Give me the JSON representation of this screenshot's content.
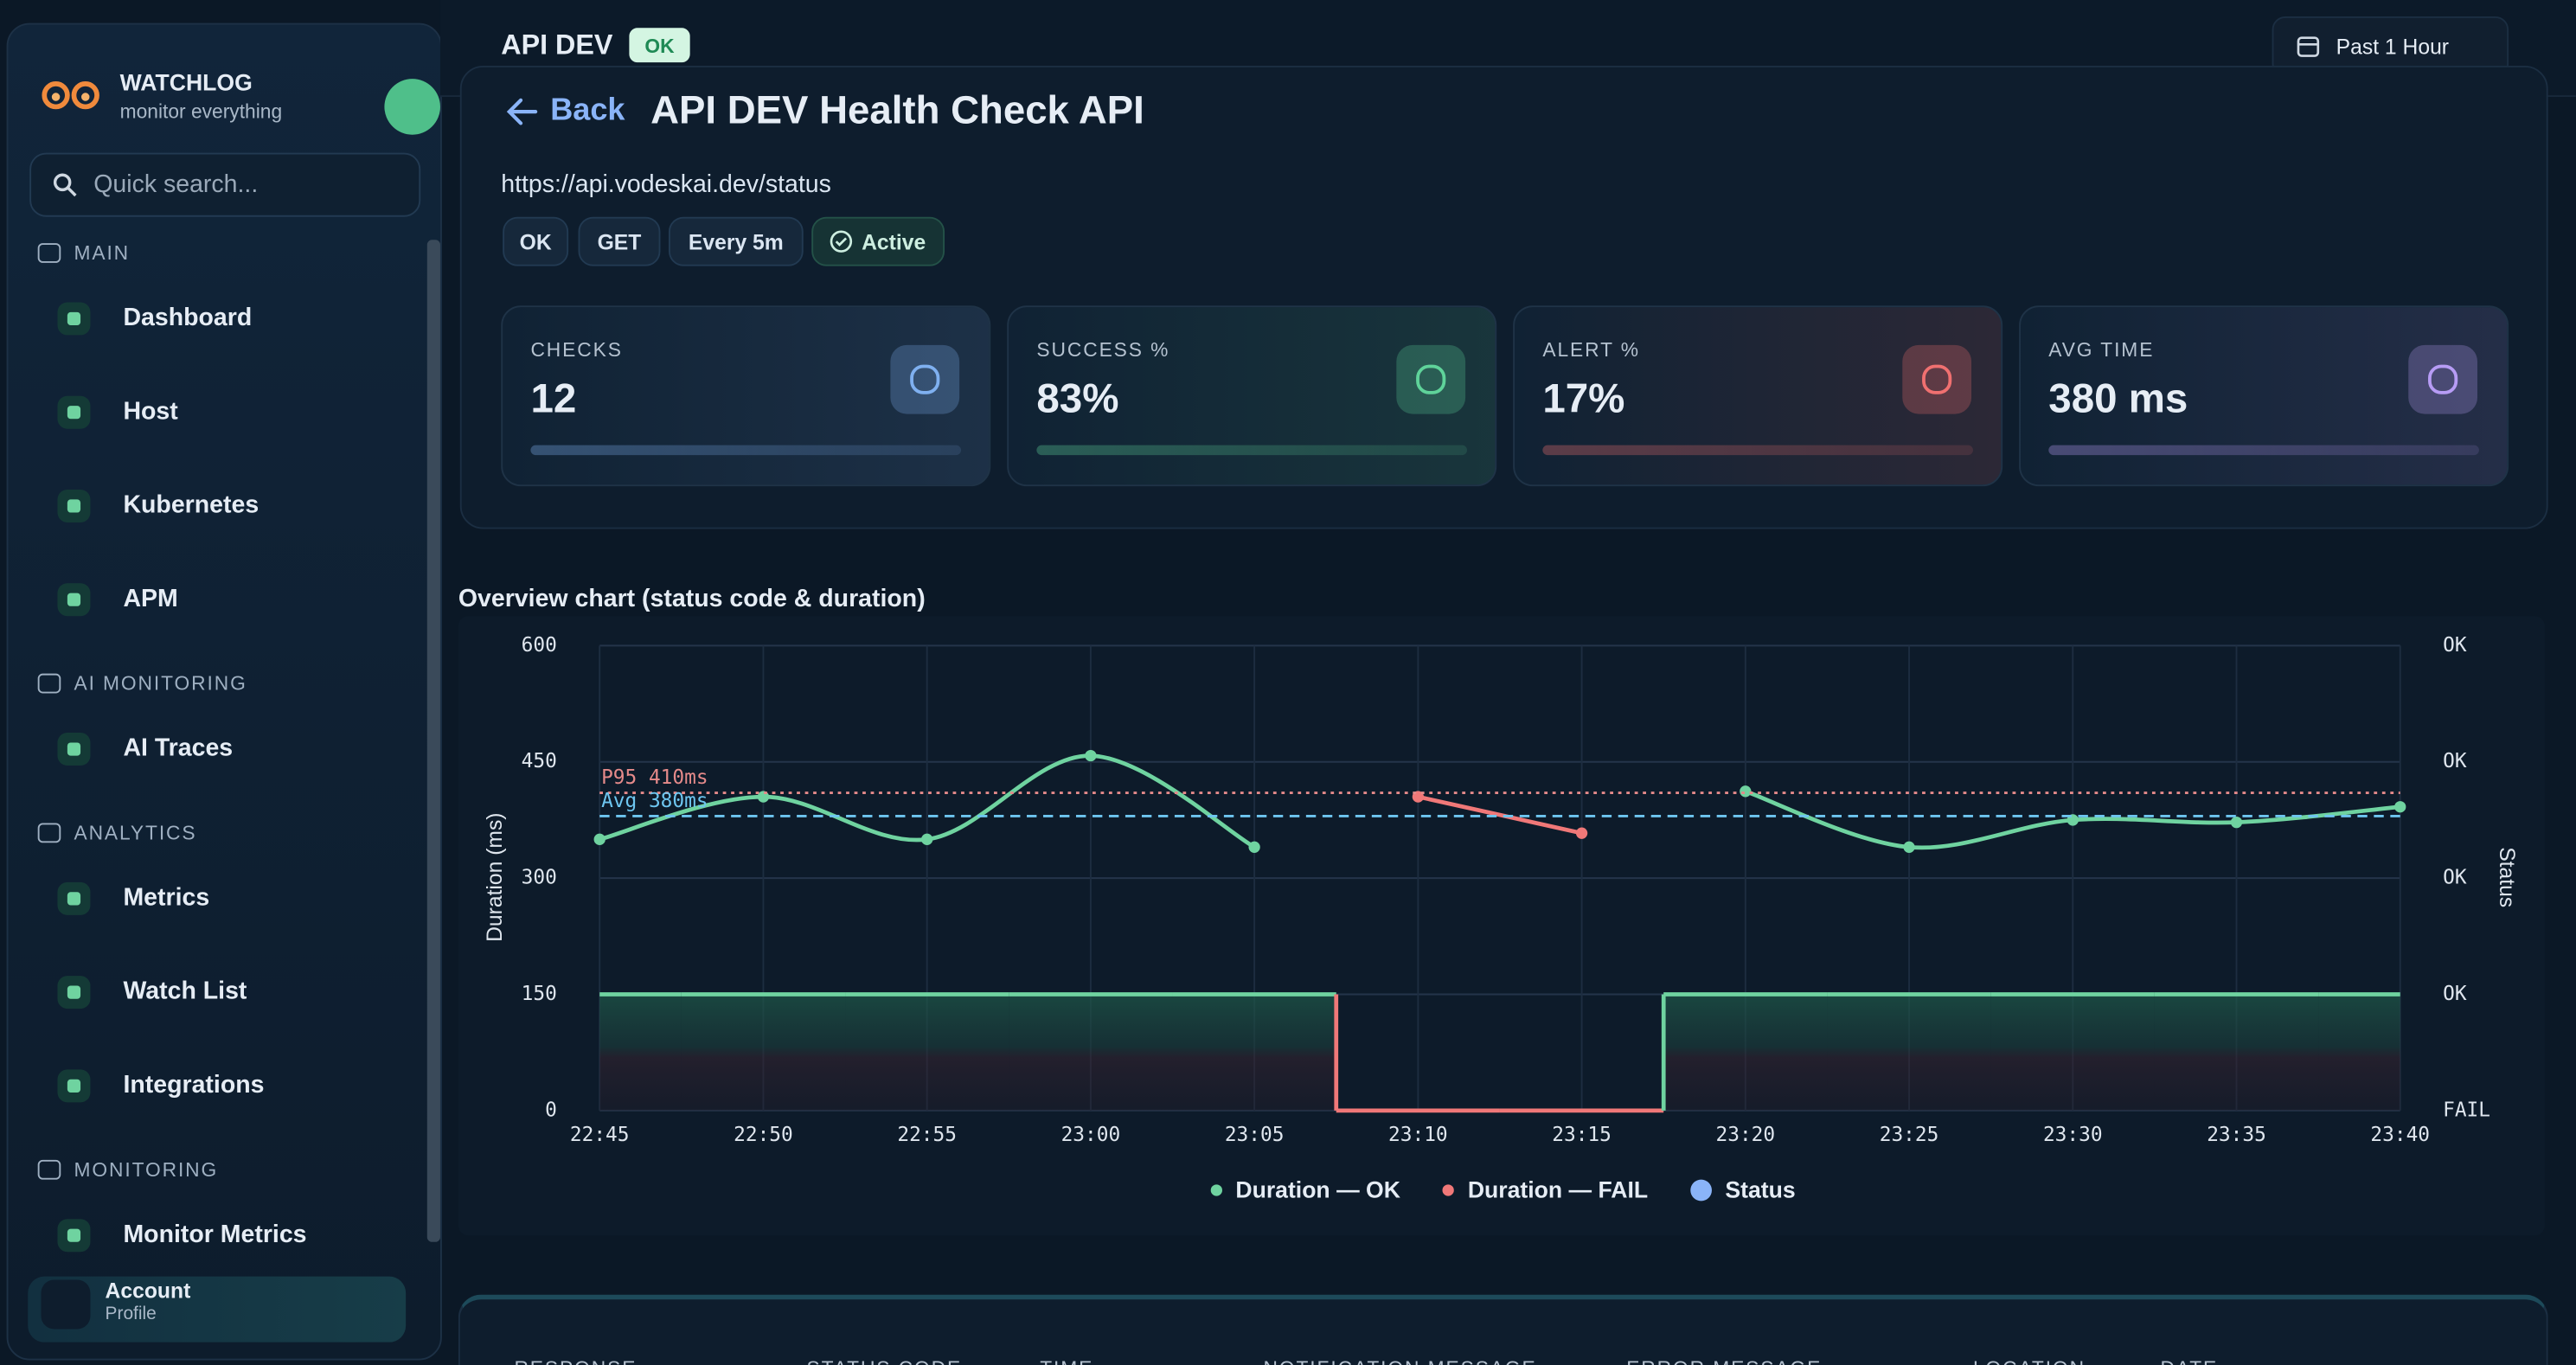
{
  "brand": {
    "name": "WATCHLOG",
    "tagline": "monitor everything"
  },
  "search": {
    "placeholder": "Quick search..."
  },
  "sidebar": [
    {
      "title": "MAIN",
      "items": [
        "Dashboard",
        "Host",
        "Kubernetes",
        "APM"
      ]
    },
    {
      "title": "AI MONITORING",
      "items": [
        "AI Traces"
      ]
    },
    {
      "title": "ANALYTICS",
      "items": [
        "Metrics",
        "Watch List",
        "Integrations"
      ]
    },
    {
      "title": "MONITORING",
      "items": [
        "Monitor Metrics"
      ]
    }
  ],
  "account": {
    "name": "Account",
    "sub": "Profile"
  },
  "header": {
    "title": "API DEV",
    "badge": "OK",
    "range": "Past 1 Hour"
  },
  "detail": {
    "back": "Back",
    "title": "API DEV Health Check API",
    "url": "https://api.vodeskai.dev/status",
    "chips": [
      "OK",
      "GET",
      "Every 5m",
      "Active"
    ]
  },
  "stats": [
    {
      "label": "CHECKS",
      "value": "12",
      "color": "#7fb0f0"
    },
    {
      "label": "SUCCESS %",
      "value": "83%",
      "color": "#5fd39a"
    },
    {
      "label": "ALERT %",
      "value": "17%",
      "color": "#f07070"
    },
    {
      "label": "AVG TIME",
      "value": "380 ms",
      "color": "#b79cf5"
    }
  ],
  "chart_data": {
    "type": "line",
    "title": "Overview chart (status code & duration)",
    "y_label": "Duration (ms)",
    "y2_label": "Status",
    "categories": [
      "22:45",
      "22:50",
      "22:55",
      "23:00",
      "23:05",
      "23:10",
      "23:15",
      "23:20",
      "23:25",
      "23:30",
      "23:35",
      "23:40"
    ],
    "series": [
      {
        "name": "Duration — OK",
        "color": "#6fd3a0",
        "values": [
          350,
          405,
          350,
          458,
          340,
          null,
          null,
          412,
          340,
          375,
          372,
          392
        ]
      },
      {
        "name": "Duration — FAIL",
        "color": "#f07878",
        "values": [
          null,
          null,
          null,
          null,
          null,
          405,
          358,
          null,
          null,
          null,
          null,
          null
        ]
      },
      {
        "name": "Status",
        "color": "#8ab4f8",
        "axis": "y2",
        "step": true,
        "values": [
          1,
          1,
          1,
          1,
          1,
          0,
          0,
          1,
          1,
          1,
          1,
          1
        ]
      }
    ],
    "annotations": [
      {
        "label": "P95 410ms",
        "value": 410,
        "color": "#e58a8a",
        "style": "dotted"
      },
      {
        "label": "Avg 380ms",
        "value": 380,
        "color": "#6ec6f0",
        "style": "dashed"
      }
    ],
    "ylim": [
      0,
      600
    ],
    "yticks": [
      0,
      150,
      300,
      450,
      600
    ],
    "y2lim": [
      0,
      4
    ],
    "y2ticks": [
      {
        "value": 0,
        "label": "FAIL"
      },
      {
        "value": 1,
        "label": "OK"
      },
      {
        "value": 2,
        "label": "OK"
      },
      {
        "value": 3,
        "label": "OK"
      },
      {
        "value": 4,
        "label": "OK"
      }
    ],
    "grid": true,
    "legend": "bottom"
  },
  "table": {
    "headers": [
      "RESPONSE",
      "STATUS CODE",
      "TIME",
      "NOTIFICATION MESSAGE",
      "ERROR MESSAGE",
      "LOCATION",
      "DATE"
    ]
  }
}
